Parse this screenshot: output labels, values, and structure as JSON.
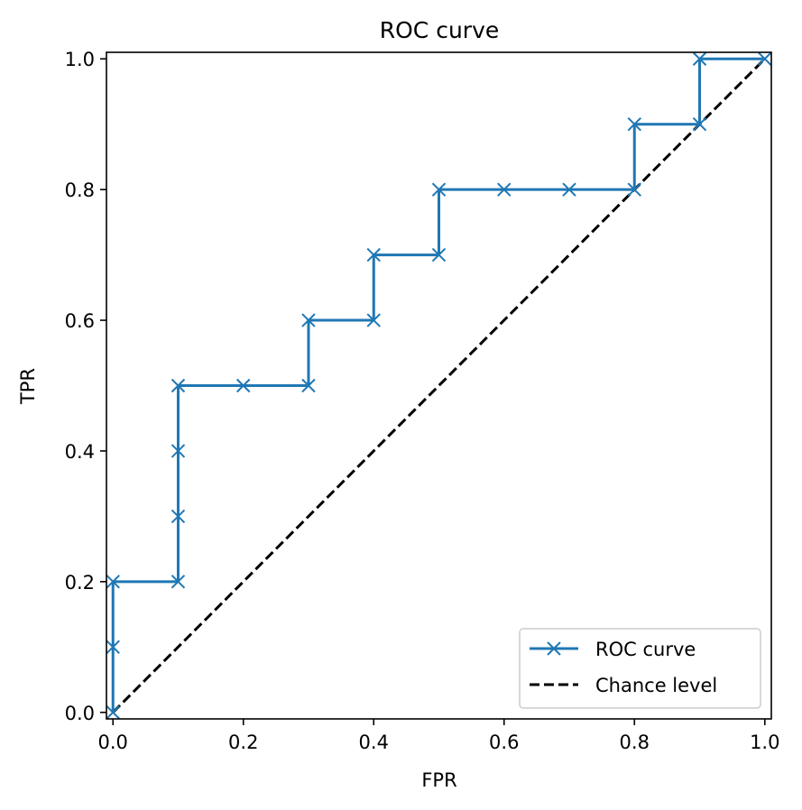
{
  "chart_data": {
    "type": "line",
    "title": "ROC curve",
    "xlabel": "FPR",
    "ylabel": "TPR",
    "xlim": [
      -0.01,
      1.01
    ],
    "ylim": [
      -0.01,
      1.01
    ],
    "xticks": [
      0.0,
      0.2,
      0.4,
      0.6,
      0.8,
      1.0
    ],
    "yticks": [
      0.0,
      0.2,
      0.4,
      0.6,
      0.8,
      1.0
    ],
    "xtick_labels": [
      "0.0",
      "0.2",
      "0.4",
      "0.6",
      "0.8",
      "1.0"
    ],
    "ytick_labels": [
      "0.0",
      "0.2",
      "0.4",
      "0.6",
      "0.8",
      "1.0"
    ],
    "grid": false,
    "legend_position": "lower-right",
    "series": [
      {
        "name": "ROC curve",
        "style": "solid",
        "marker": "x",
        "color": "#1f77b4",
        "x": [
          0.0,
          0.0,
          0.0,
          0.1,
          0.1,
          0.1,
          0.1,
          0.2,
          0.3,
          0.3,
          0.4,
          0.4,
          0.5,
          0.5,
          0.6,
          0.7,
          0.8,
          0.8,
          0.9,
          0.9,
          1.0
        ],
        "y": [
          0.0,
          0.1,
          0.2,
          0.2,
          0.3,
          0.4,
          0.5,
          0.5,
          0.5,
          0.6,
          0.6,
          0.7,
          0.7,
          0.8,
          0.8,
          0.8,
          0.8,
          0.9,
          0.9,
          1.0,
          1.0
        ]
      },
      {
        "name": "Chance level",
        "style": "dashed",
        "marker": "none",
        "color": "#000000",
        "x": [
          0.0,
          1.0
        ],
        "y": [
          0.0,
          1.0
        ]
      }
    ]
  }
}
